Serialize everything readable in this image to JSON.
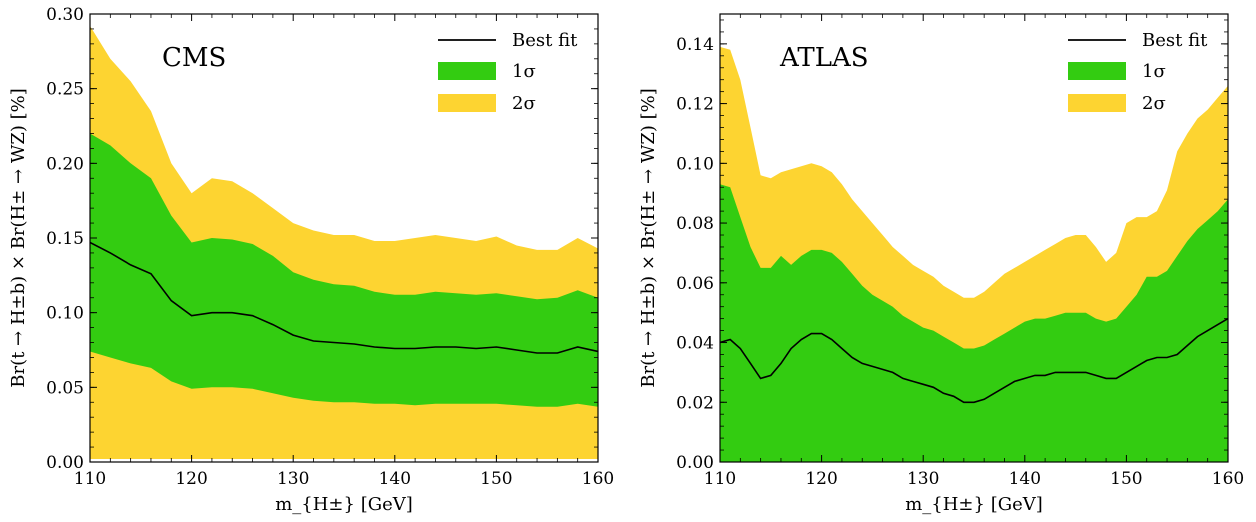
{
  "colors": {
    "one_sigma": "#33cc11",
    "two_sigma": "#fdd431",
    "best_fit": "#000000"
  },
  "chart_data": [
    {
      "type": "area",
      "experiment_label": "CMS",
      "xlabel": "m_{H±} [GeV]",
      "ylabel": "Br(t → H±b) × Br(H± → WZ) [%]",
      "xlim": [
        110,
        160
      ],
      "ylim": [
        0,
        0.3
      ],
      "xticks": [
        110,
        120,
        130,
        140,
        150,
        160
      ],
      "yticks": [
        "0.00",
        "0.05",
        "0.10",
        "0.15",
        "0.20",
        "0.25",
        "0.30"
      ],
      "ytick_values": [
        0,
        0.05,
        0.1,
        0.15,
        0.2,
        0.25,
        0.3
      ],
      "legend": {
        "placement": "top-right",
        "entries": [
          "Best fit",
          "1σ",
          "2σ"
        ]
      },
      "x": [
        110,
        112,
        114,
        116,
        118,
        120,
        122,
        124,
        126,
        128,
        130,
        132,
        134,
        136,
        138,
        140,
        142,
        144,
        146,
        148,
        150,
        152,
        154,
        156,
        158,
        160
      ],
      "series": [
        {
          "name": "Best fit",
          "values": [
            0.147,
            0.14,
            0.132,
            0.126,
            0.108,
            0.098,
            0.1,
            0.1,
            0.098,
            0.092,
            0.085,
            0.081,
            0.08,
            0.079,
            0.077,
            0.076,
            0.076,
            0.077,
            0.077,
            0.076,
            0.077,
            0.075,
            0.073,
            0.073,
            0.077,
            0.074
          ]
        },
        {
          "name": "1σ",
          "upper": [
            0.22,
            0.212,
            0.2,
            0.19,
            0.165,
            0.147,
            0.15,
            0.149,
            0.146,
            0.138,
            0.127,
            0.122,
            0.119,
            0.118,
            0.114,
            0.112,
            0.112,
            0.114,
            0.113,
            0.112,
            0.113,
            0.111,
            0.109,
            0.11,
            0.115,
            0.11
          ],
          "lower": [
            0.074,
            0.07,
            0.066,
            0.063,
            0.054,
            0.049,
            0.05,
            0.05,
            0.049,
            0.046,
            0.043,
            0.041,
            0.04,
            0.04,
            0.039,
            0.039,
            0.038,
            0.039,
            0.039,
            0.039,
            0.039,
            0.038,
            0.037,
            0.037,
            0.039,
            0.037
          ]
        },
        {
          "name": "2σ",
          "upper": [
            0.292,
            0.27,
            0.255,
            0.235,
            0.2,
            0.18,
            0.19,
            0.188,
            0.18,
            0.17,
            0.16,
            0.155,
            0.152,
            0.152,
            0.148,
            0.148,
            0.15,
            0.152,
            0.15,
            0.148,
            0.151,
            0.145,
            0.142,
            0.142,
            0.15,
            0.143
          ],
          "lower": [
            0.002,
            0.002,
            0.002,
            0.002,
            0.002,
            0.002,
            0.002,
            0.002,
            0.002,
            0.002,
            0.002,
            0.002,
            0.002,
            0.002,
            0.002,
            0.002,
            0.002,
            0.002,
            0.002,
            0.002,
            0.002,
            0.002,
            0.002,
            0.002,
            0.002,
            0.002
          ]
        }
      ]
    },
    {
      "type": "area",
      "experiment_label": "ATLAS",
      "xlabel": "m_{H±} [GeV]",
      "ylabel": "Br(t → H±b) × Br(H± → WZ) [%]",
      "xlim": [
        110,
        160
      ],
      "ylim": [
        0,
        0.15
      ],
      "xticks": [
        110,
        120,
        130,
        140,
        150,
        160
      ],
      "yticks": [
        "0.00",
        "0.02",
        "0.04",
        "0.06",
        "0.08",
        "0.10",
        "0.12",
        "0.14"
      ],
      "ytick_values": [
        0,
        0.02,
        0.04,
        0.06,
        0.08,
        0.1,
        0.12,
        0.14
      ],
      "legend": {
        "placement": "top-right",
        "entries": [
          "Best fit",
          "1σ",
          "2σ"
        ]
      },
      "x": [
        110,
        111,
        112,
        113,
        114,
        115,
        116,
        117,
        118,
        119,
        120,
        121,
        122,
        123,
        124,
        125,
        126,
        127,
        128,
        129,
        130,
        131,
        132,
        133,
        134,
        135,
        136,
        137,
        138,
        139,
        140,
        141,
        142,
        143,
        144,
        145,
        146,
        147,
        148,
        149,
        150,
        151,
        152,
        153,
        154,
        155,
        156,
        157,
        158,
        159,
        160
      ],
      "series": [
        {
          "name": "Best fit",
          "values": [
            0.04,
            0.041,
            0.038,
            0.033,
            0.028,
            0.029,
            0.033,
            0.038,
            0.041,
            0.043,
            0.043,
            0.041,
            0.038,
            0.035,
            0.033,
            0.032,
            0.031,
            0.03,
            0.028,
            0.027,
            0.026,
            0.025,
            0.023,
            0.022,
            0.02,
            0.02,
            0.021,
            0.023,
            0.025,
            0.027,
            0.028,
            0.029,
            0.029,
            0.03,
            0.03,
            0.03,
            0.03,
            0.029,
            0.028,
            0.028,
            0.03,
            0.032,
            0.034,
            0.035,
            0.035,
            0.036,
            0.039,
            0.042,
            0.044,
            0.046,
            0.048
          ]
        },
        {
          "name": "1σ",
          "upper": [
            0.093,
            0.092,
            0.082,
            0.072,
            0.065,
            0.065,
            0.069,
            0.066,
            0.069,
            0.071,
            0.071,
            0.07,
            0.067,
            0.063,
            0.059,
            0.056,
            0.054,
            0.052,
            0.049,
            0.047,
            0.045,
            0.044,
            0.042,
            0.04,
            0.038,
            0.038,
            0.039,
            0.041,
            0.043,
            0.045,
            0.047,
            0.048,
            0.048,
            0.049,
            0.05,
            0.05,
            0.05,
            0.048,
            0.047,
            0.048,
            0.052,
            0.056,
            0.062,
            0.062,
            0.064,
            0.069,
            0.074,
            0.078,
            0.081,
            0.084,
            0.088
          ],
          "lower": [
            0.0,
            0.0,
            0.0,
            0.0,
            0.0,
            0.0,
            0.0,
            0.0,
            0.0,
            0.0,
            0.0,
            0.0,
            0.0,
            0.0,
            0.0,
            0.0,
            0.0,
            0.0,
            0.0,
            0.0,
            0.0,
            0.0,
            0.0,
            0.0,
            0.0,
            0.0,
            0.0,
            0.0,
            0.0,
            0.0,
            0.0,
            0.0,
            0.0,
            0.0,
            0.0,
            0.0,
            0.0,
            0.0,
            0.0,
            0.0,
            0.0,
            0.0,
            0.0,
            0.0,
            0.0,
            0.0,
            0.0,
            0.0,
            0.0,
            0.0,
            0.0
          ]
        },
        {
          "name": "2σ",
          "upper": [
            0.139,
            0.138,
            0.128,
            0.112,
            0.096,
            0.095,
            0.097,
            0.098,
            0.099,
            0.1,
            0.099,
            0.097,
            0.093,
            0.088,
            0.084,
            0.08,
            0.076,
            0.072,
            0.069,
            0.066,
            0.064,
            0.062,
            0.059,
            0.057,
            0.055,
            0.055,
            0.057,
            0.06,
            0.063,
            0.065,
            0.067,
            0.069,
            0.071,
            0.073,
            0.075,
            0.076,
            0.076,
            0.072,
            0.067,
            0.07,
            0.08,
            0.082,
            0.082,
            0.084,
            0.091,
            0.104,
            0.11,
            0.115,
            0.118,
            0.122,
            0.126
          ],
          "lower": [
            0.0,
            0.0,
            0.0,
            0.0,
            0.0,
            0.0,
            0.0,
            0.0,
            0.0,
            0.0,
            0.0,
            0.0,
            0.0,
            0.0,
            0.0,
            0.0,
            0.0,
            0.0,
            0.0,
            0.0,
            0.0,
            0.0,
            0.0,
            0.0,
            0.0,
            0.0,
            0.0,
            0.0,
            0.0,
            0.0,
            0.0,
            0.0,
            0.0,
            0.0,
            0.0,
            0.0,
            0.0,
            0.0,
            0.0,
            0.0,
            0.0,
            0.0,
            0.0,
            0.0,
            0.0,
            0.0,
            0.0,
            0.0,
            0.0,
            0.0,
            0.0
          ]
        }
      ]
    }
  ]
}
